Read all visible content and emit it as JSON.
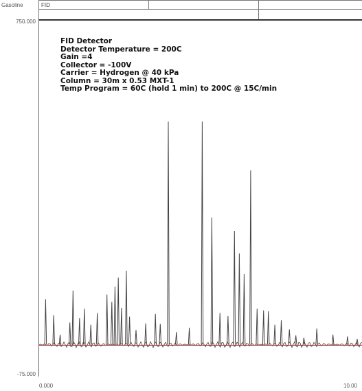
{
  "header": {
    "sample": "Gasoline",
    "detector_tag": "FID"
  },
  "annotations": [
    "FID Detector",
    "Detector Temperature = 200C",
    "Gain =4",
    "Collector = -100V",
    "Carrier = Hydrogen @ 40 kPa",
    "Column = 30m x 0.53 MXT-1",
    "Temp Program = 60C (hold 1 min) to 200C @ 15C/min"
  ],
  "colors": {
    "trace": "#444444",
    "baseline": "#b03a3a",
    "frame": "#666666"
  },
  "chart_data": {
    "type": "line",
    "title": "",
    "xlabel": "",
    "ylabel": "",
    "xlim": [
      0.0,
      10.0
    ],
    "ylim": [
      -75.0,
      750.0
    ],
    "y_tick_labels": [
      "750.000",
      "-75.000"
    ],
    "x_tick_labels": [
      "0.000",
      "10.00"
    ],
    "baseline_level": -1.0,
    "grid": false,
    "legend": "none",
    "peaks": [
      {
        "x": 0.2,
        "y": 104
      },
      {
        "x": 0.45,
        "y": 67
      },
      {
        "x": 0.65,
        "y": 22
      },
      {
        "x": 0.95,
        "y": 50
      },
      {
        "x": 1.05,
        "y": 124
      },
      {
        "x": 1.25,
        "y": 60
      },
      {
        "x": 1.4,
        "y": 82
      },
      {
        "x": 1.6,
        "y": 45
      },
      {
        "x": 1.8,
        "y": 72
      },
      {
        "x": 2.1,
        "y": 115
      },
      {
        "x": 2.25,
        "y": 98
      },
      {
        "x": 2.35,
        "y": 133
      },
      {
        "x": 2.45,
        "y": 154
      },
      {
        "x": 2.55,
        "y": 84
      },
      {
        "x": 2.7,
        "y": 170
      },
      {
        "x": 2.8,
        "y": 64
      },
      {
        "x": 3.0,
        "y": 33
      },
      {
        "x": 3.3,
        "y": 48
      },
      {
        "x": 3.6,
        "y": 70
      },
      {
        "x": 3.75,
        "y": 47
      },
      {
        "x": 4.0,
        "y": 515
      },
      {
        "x": 4.25,
        "y": 28
      },
      {
        "x": 4.65,
        "y": 38
      },
      {
        "x": 5.05,
        "y": 515
      },
      {
        "x": 5.35,
        "y": 293
      },
      {
        "x": 5.6,
        "y": 72
      },
      {
        "x": 5.85,
        "y": 65
      },
      {
        "x": 6.05,
        "y": 262
      },
      {
        "x": 6.2,
        "y": 210
      },
      {
        "x": 6.35,
        "y": 162
      },
      {
        "x": 6.55,
        "y": 402
      },
      {
        "x": 6.75,
        "y": 82
      },
      {
        "x": 6.95,
        "y": 78
      },
      {
        "x": 7.1,
        "y": 76
      },
      {
        "x": 7.3,
        "y": 45
      },
      {
        "x": 7.5,
        "y": 55
      },
      {
        "x": 7.75,
        "y": 34
      },
      {
        "x": 7.95,
        "y": 20
      },
      {
        "x": 8.2,
        "y": 15
      },
      {
        "x": 8.6,
        "y": 36
      },
      {
        "x": 9.1,
        "y": 22
      },
      {
        "x": 9.55,
        "y": 18
      },
      {
        "x": 9.85,
        "y": 12
      }
    ]
  }
}
